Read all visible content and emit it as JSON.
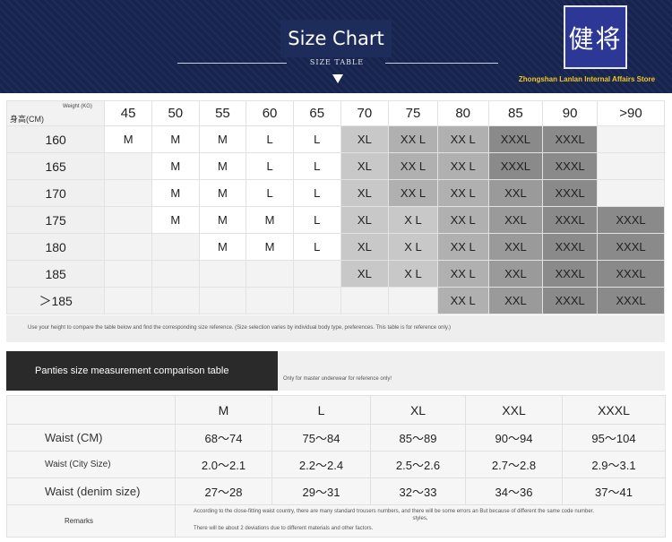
{
  "header": {
    "title": "Size Chart",
    "subtitle": "SIZE TABLE",
    "logo_text": "健将",
    "store_name": "Zhongshan Lanlan Internal Affairs Store"
  },
  "size_chart": {
    "weight_label": "Weight (KG)",
    "height_label": "身高(CM)",
    "weights": [
      "45",
      "50",
      "55",
      "60",
      "65",
      "70",
      "75",
      "80",
      "85",
      "90",
      ">90"
    ],
    "rows": [
      {
        "height": "160",
        "cells": [
          "M",
          "M",
          "M",
          "L",
          "L",
          "XL",
          "XX L",
          "XX L",
          "XXXL",
          "XXXL",
          ""
        ]
      },
      {
        "height": "165",
        "cells": [
          "",
          "M",
          "M",
          "L",
          "L",
          "XL",
          "XX L",
          "XX L",
          "XXXL",
          "XXXL",
          ""
        ]
      },
      {
        "height": "170",
        "cells": [
          "",
          "M",
          "M",
          "L",
          "L",
          "XL",
          "XX L",
          "XX L",
          "XXL",
          "XXXL",
          ""
        ]
      },
      {
        "height": "175",
        "cells": [
          "",
          "M",
          "M",
          "M",
          "L",
          "XL",
          "X L",
          "XX L",
          "XXL",
          "XXXL",
          "XXXL"
        ]
      },
      {
        "height": "180",
        "cells": [
          "",
          "",
          "M",
          "M",
          "L",
          "XL",
          "X L",
          "XX L",
          "XXL",
          "XXXL",
          "XXXL"
        ]
      },
      {
        "height": "185",
        "cells": [
          "",
          "",
          "",
          "",
          "",
          "XL",
          "X L",
          "XX L",
          "XXL",
          "XXXL",
          "XXXL"
        ]
      },
      {
        "height": "＞185",
        "cells": [
          "",
          "",
          "",
          "",
          "",
          "",
          "",
          "XX L",
          "XXL",
          "XXXL",
          "XXXL"
        ]
      }
    ],
    "note": "Use your height to compare the table below and find the corresponding size reference. (Size selection varies by individual body type, preferences. This table is for reference only.)"
  },
  "panties": {
    "title": "Panties size measurement comparison table",
    "note": "Only for master underwear for reference only!",
    "sizes": [
      "M",
      "L",
      "XL",
      "XXL",
      "XXXL"
    ],
    "rows": [
      {
        "label": "Waist (CM)",
        "values": [
          "68～74",
          "75～84",
          "85～89",
          "90～94",
          "95～104"
        ]
      },
      {
        "label": "Waist (City Size)",
        "values": [
          "2.0～2.1",
          "2.2～2.4",
          "2.5～2.6",
          "2.7～2.8",
          "2.9～3.1"
        ]
      },
      {
        "label": "Waist (denim size)",
        "values": [
          "27～28",
          "29～31",
          "32～33",
          "34～36",
          "37～41"
        ]
      }
    ],
    "remarks_label": "Remarks",
    "remarks_line1": "According to the close-fitting waist country, there are many standard trousers numbers, and there will be some errors an But because of different the same code number.",
    "remarks_line1b": "styles,",
    "remarks_line2": "There will be about 2 deviations due to different materials and other factors."
  }
}
